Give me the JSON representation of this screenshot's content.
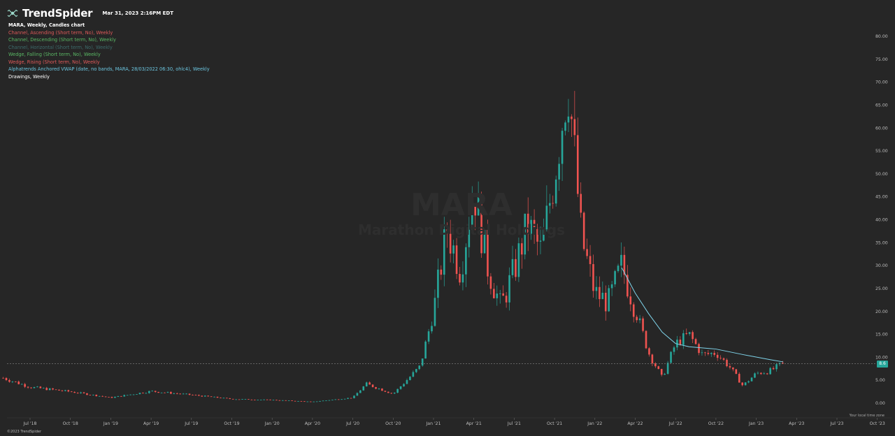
{
  "header": {
    "brand": "TrendSpider",
    "timestamp": "Mar 31, 2023 2:16PM EDT"
  },
  "legend": [
    {
      "text": "MARA, Weekly, Candles chart",
      "color": "#ffffff"
    },
    {
      "text": "Channel, Ascending (Short term, No), Weekly",
      "color": "#e05a5a"
    },
    {
      "text": "Channel, Descending (Short term, No), Weekly",
      "color": "#5ab865"
    },
    {
      "text": "Channel, Horizontal (Short term, No), Weekly",
      "color": "#3c6b6b"
    },
    {
      "text": "Wedge, Falling (Short term, No), Weekly",
      "color": "#5ab865"
    },
    {
      "text": "Wedge, Rising (Short term, No), Weekly",
      "color": "#e05a5a"
    },
    {
      "text": "Alphatrends Anchored VWAP (date, no bands, MARA, 28/03/2022 06:30, ohlc4), Weekly",
      "color": "#6cc6e0"
    },
    {
      "text": "Drawings, Weekly",
      "color": "#ffffff"
    }
  ],
  "watermark": {
    "symbol": "MARA",
    "name": "Marathon Digital Holdings"
  },
  "footer": {
    "timezone": "Your local time zone",
    "copyright": "©2023 TrendSpider"
  },
  "colors": {
    "up": "#26a69a",
    "down": "#ef5350",
    "vwap": "#7fd4ea",
    "grid": "#3a3a3a",
    "background": "#262626"
  },
  "chart_data": {
    "type": "candlestick",
    "symbol": "MARA",
    "timeframe": "Weekly",
    "x_ticks": [
      "Jul '18",
      "Oct '18",
      "Jan '19",
      "Apr '19",
      "Jul '19",
      "Oct '19",
      "Jan '20",
      "Apr '20",
      "Jul '20",
      "Oct '20",
      "Jan '21",
      "Apr '21",
      "Jul '21",
      "Oct '21",
      "Jan '22",
      "Apr '22",
      "Jul '22",
      "Oct '22",
      "Jan '23",
      "Apr '23",
      "Jul '23",
      "Oct '23"
    ],
    "y_ticks": [
      "0.00",
      "5.00",
      "10.00",
      "15.00",
      "20.00",
      "25.00",
      "30.00",
      "35.00",
      "40.00",
      "45.00",
      "50.00",
      "55.00",
      "60.00",
      "65.00",
      "70.00",
      "75.00",
      "80.00"
    ],
    "ylim": [
      0,
      80
    ],
    "last_price": 8.6,
    "last_price_label": "8.6",
    "close_series": [
      {
        "date": "2018-05",
        "value": 5.5
      },
      {
        "date": "2018-07",
        "value": 3.5
      },
      {
        "date": "2018-10",
        "value": 2.5
      },
      {
        "date": "2019-01",
        "value": 1.2
      },
      {
        "date": "2019-04",
        "value": 2.6
      },
      {
        "date": "2019-07",
        "value": 1.8
      },
      {
        "date": "2019-10",
        "value": 0.9
      },
      {
        "date": "2020-01",
        "value": 0.7
      },
      {
        "date": "2020-04",
        "value": 0.3
      },
      {
        "date": "2020-07",
        "value": 1.2
      },
      {
        "date": "2020-08",
        "value": 4.2
      },
      {
        "date": "2020-10",
        "value": 2.0
      },
      {
        "date": "2020-12",
        "value": 8.0
      },
      {
        "date": "2021-01",
        "value": 20.0
      },
      {
        "date": "2021-02",
        "value": 38.0
      },
      {
        "date": "2021-03",
        "value": 29.0
      },
      {
        "date": "2021-04",
        "value": 47.0
      },
      {
        "date": "2021-05",
        "value": 30.0
      },
      {
        "date": "2021-06",
        "value": 21.0
      },
      {
        "date": "2021-07",
        "value": 29.0
      },
      {
        "date": "2021-08",
        "value": 39.0
      },
      {
        "date": "2021-09",
        "value": 33.0
      },
      {
        "date": "2021-10",
        "value": 50.0
      },
      {
        "date": "2021-11",
        "value": 71.0
      },
      {
        "date": "2021-12",
        "value": 36.0
      },
      {
        "date": "2022-01",
        "value": 24.0
      },
      {
        "date": "2022-02",
        "value": 22.0
      },
      {
        "date": "2022-03",
        "value": 30.0
      },
      {
        "date": "2022-05",
        "value": 11.0
      },
      {
        "date": "2022-06",
        "value": 5.5
      },
      {
        "date": "2022-07",
        "value": 13.0
      },
      {
        "date": "2022-08",
        "value": 15.0
      },
      {
        "date": "2022-09",
        "value": 10.5
      },
      {
        "date": "2022-10",
        "value": 11.0
      },
      {
        "date": "2022-11",
        "value": 8.0
      },
      {
        "date": "2022-12",
        "value": 3.8
      },
      {
        "date": "2023-01",
        "value": 6.5
      },
      {
        "date": "2023-02",
        "value": 7.0
      },
      {
        "date": "2023-03",
        "value": 8.6
      }
    ],
    "vwap_series": [
      {
        "date": "2022-03",
        "value": 29.5
      },
      {
        "date": "2022-04",
        "value": 24.0
      },
      {
        "date": "2022-05",
        "value": 19.5
      },
      {
        "date": "2022-06",
        "value": 15.5
      },
      {
        "date": "2022-07",
        "value": 13.0
      },
      {
        "date": "2022-08",
        "value": 12.3
      },
      {
        "date": "2022-10",
        "value": 11.8
      },
      {
        "date": "2022-12",
        "value": 10.6
      },
      {
        "date": "2023-02",
        "value": 9.5
      },
      {
        "date": "2023-03",
        "value": 9.0
      }
    ]
  }
}
